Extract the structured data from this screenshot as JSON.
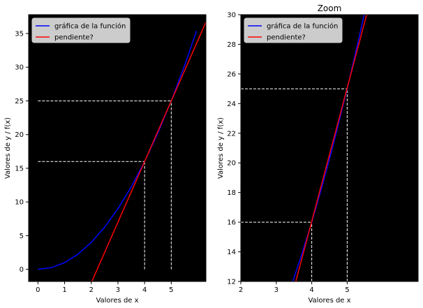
{
  "chart_data": [
    {
      "type": "line",
      "title": "",
      "xlabel": "Valores de x",
      "ylabel": "Valores de y / f(x)",
      "xlim": [
        -0.35,
        6.3
      ],
      "ylim": [
        -1.8,
        37.8
      ],
      "xticks": [
        0,
        1,
        2,
        3,
        4,
        5
      ],
      "yticks": [
        0,
        5,
        10,
        15,
        20,
        25,
        30,
        35
      ],
      "background": "#000000",
      "grid": false,
      "legend_position": "top-left",
      "series": [
        {
          "name": "gráfica de la función",
          "color": "#0000ff",
          "x": [
            0,
            0.5,
            1,
            1.5,
            2,
            2.5,
            3,
            3.5,
            4,
            4.5,
            5,
            5.5,
            5.95
          ],
          "y": [
            0,
            0.25,
            1,
            2.25,
            4,
            6.25,
            9,
            12.25,
            16,
            20.25,
            25,
            30.25,
            35.4
          ]
        },
        {
          "name": "pendiente?",
          "color": "#ff0000",
          "x": [
            2,
            6.3
          ],
          "y": [
            -2,
            36.7
          ]
        }
      ],
      "reference_lines": [
        {
          "x": [
            0,
            4
          ],
          "y": [
            16,
            16
          ]
        },
        {
          "x": [
            0,
            5
          ],
          "y": [
            25,
            25
          ]
        },
        {
          "x": [
            4,
            4
          ],
          "y": [
            0,
            16
          ]
        },
        {
          "x": [
            5,
            5
          ],
          "y": [
            0,
            25
          ]
        }
      ]
    },
    {
      "type": "line",
      "title": "Zoom",
      "xlabel": "Valores de x",
      "ylabel": "Valores de y / f(x)",
      "xlim": [
        2,
        7
      ],
      "ylim": [
        12,
        30
      ],
      "xticks": [
        2,
        3,
        4,
        5
      ],
      "yticks": [
        12,
        14,
        16,
        18,
        20,
        22,
        24,
        26,
        28,
        30
      ],
      "background": "#000000",
      "grid": false,
      "legend_position": "top-left",
      "series": [
        {
          "name": "gráfica de la función",
          "color": "#0000ff",
          "x": [
            3.46,
            3.7,
            4,
            4.3,
            4.6,
            5,
            5.3,
            5.48
          ],
          "y": [
            11.97,
            13.69,
            16,
            18.49,
            21.16,
            25,
            28.09,
            30.03
          ]
        },
        {
          "name": "pendiente?",
          "color": "#ff0000",
          "x": [
            3.55,
            5.56
          ],
          "y": [
            12,
            30.1
          ]
        }
      ],
      "reference_lines": [
        {
          "x": [
            2,
            4
          ],
          "y": [
            16,
            16
          ]
        },
        {
          "x": [
            2,
            5
          ],
          "y": [
            25,
            25
          ]
        },
        {
          "x": [
            4,
            4
          ],
          "y": [
            12,
            16
          ]
        },
        {
          "x": [
            5,
            5
          ],
          "y": [
            12,
            25
          ]
        }
      ]
    }
  ]
}
